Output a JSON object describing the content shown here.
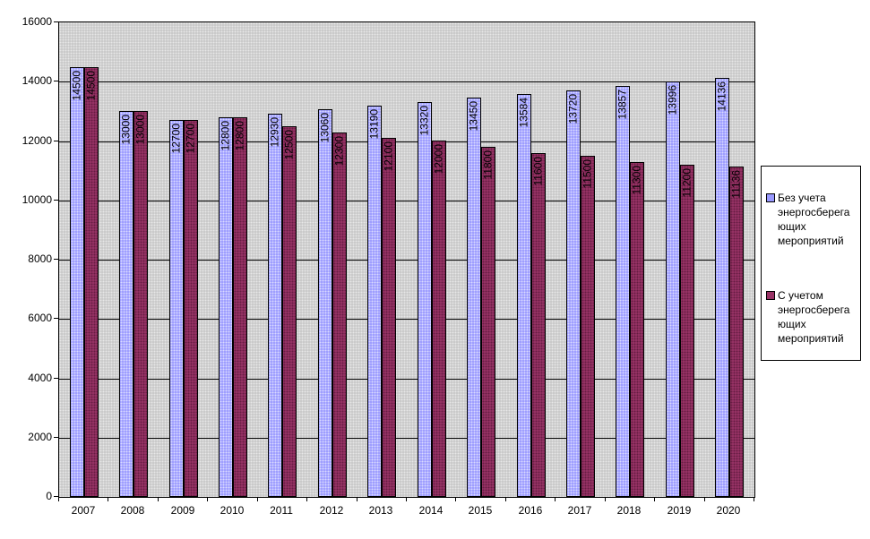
{
  "chart_data": {
    "type": "bar",
    "title": "",
    "xlabel": "",
    "ylabel": "",
    "categories": [
      "2007",
      "2008",
      "2009",
      "2010",
      "2011",
      "2012",
      "2013",
      "2014",
      "2015",
      "2016",
      "2017",
      "2018",
      "2019",
      "2020"
    ],
    "series": [
      {
        "name": "Без учета энергосберегающих мероприятий",
        "color": "#9999FF",
        "values": [
          14500,
          13000,
          12700,
          12800,
          12930,
          13060,
          13190,
          13320,
          13450,
          13584,
          13720,
          13857,
          13996,
          14136
        ]
      },
      {
        "name": "С учетом энергосберегающих мероприятий",
        "color": "#993366",
        "values": [
          14500,
          13000,
          12700,
          12800,
          12500,
          12300,
          12100,
          12000,
          11800,
          11600,
          11500,
          11300,
          11200,
          11136
        ]
      }
    ],
    "ylim": [
      0,
      16000
    ],
    "yticks": [
      0,
      2000,
      4000,
      6000,
      8000,
      10000,
      12000,
      14000,
      16000
    ],
    "grid": "horizontal",
    "gridline_color": "#000000",
    "plot_background": "#C0C0C0",
    "legend_position": "right",
    "value_labels": "rotated-vertical-inside-top"
  },
  "legend": {
    "items": [
      {
        "swatch_color": "#9999FF",
        "lines": [
          "Без учета",
          "энергосберега",
          "ющих",
          "мероприятий"
        ]
      },
      {
        "swatch_color": "#993366",
        "lines": [
          "С учетом",
          "энергосберега",
          "ющих",
          "мероприятий"
        ]
      }
    ]
  }
}
